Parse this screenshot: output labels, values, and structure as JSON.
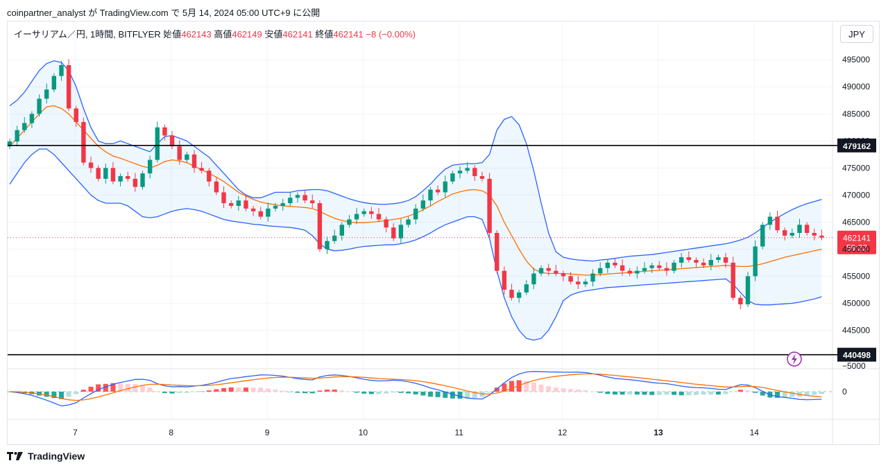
{
  "header": {
    "text": "coinpartner_analyst が TradingView.com で 5月 14, 2024 05:00 UTC+9 に公開"
  },
  "legend": {
    "symbol": "イーサリアム／円, 1時間, BITFLYER",
    "open_label": "始値",
    "open": "462143",
    "high_label": "高値",
    "high": "462149",
    "low_label": "安値",
    "low": "462141",
    "close_label": "終値",
    "close": "462141",
    "change": "−8 (−0.00%)"
  },
  "currency_button": "JPY",
  "brand": {
    "name": "TradingView"
  },
  "colors": {
    "up": "#089981",
    "down": "#f23645",
    "band": "#2962ff",
    "basis": "#ff6d00",
    "macd": "#2962ff",
    "signal": "#ff6d00"
  },
  "chart_data": [
    {
      "type": "candlestick",
      "ylim": [
        441000,
        498000
      ],
      "y_ticks": [
        445000,
        450000,
        455000,
        460000,
        465000,
        470000,
        475000,
        480000,
        485000,
        490000,
        495000
      ],
      "x_ticks": [
        "7",
        "8",
        "9",
        "10",
        "11",
        "12",
        "13",
        "14"
      ],
      "last_price_label": "462141",
      "countdown_label": "59:22",
      "horizontal_lines": [
        {
          "value": 479162,
          "label": "479162"
        },
        {
          "value": 440498,
          "label": "440498"
        }
      ],
      "closes": [
        479900,
        482000,
        483300,
        485000,
        487800,
        489500,
        492000,
        494000,
        486000,
        483500,
        476000,
        475000,
        473000,
        475000,
        472500,
        473500,
        473000,
        471500,
        474000,
        476500,
        482500,
        481000,
        479000,
        476500,
        477500,
        475000,
        474500,
        472500,
        470500,
        468500,
        468000,
        469000,
        467500,
        467000,
        466000,
        467500,
        468000,
        468500,
        469500,
        470000,
        469000,
        468500,
        460000,
        461500,
        462500,
        464500,
        465500,
        466500,
        467000,
        466500,
        465500,
        464000,
        462000,
        464500,
        465500,
        467500,
        469000,
        471000,
        470500,
        472500,
        474000,
        474500,
        475000,
        473500,
        473000,
        463000,
        456000,
        452500,
        451000,
        452000,
        453500,
        455500,
        456500,
        456000,
        455500,
        455000,
        454000,
        453500,
        454000,
        455500,
        456500,
        457500,
        457000,
        456000,
        455500,
        456000,
        456500,
        457000,
        456500,
        456000,
        457500,
        458500,
        458000,
        457500,
        457000,
        458000,
        458500,
        457500,
        451000,
        449800,
        455000,
        460500,
        464500,
        466000,
        463500,
        462500,
        463000,
        464500,
        463000,
        462500,
        462141
      ],
      "bb_upper": [
        486500,
        487500,
        489000,
        491000,
        493000,
        494300,
        494800,
        494500,
        493000,
        490000,
        486000,
        482500,
        480000,
        479500,
        479500,
        480000,
        479500,
        479000,
        478500,
        478000,
        479500,
        480800,
        481000,
        480500,
        480000,
        479000,
        478000,
        477000,
        475500,
        474000,
        472500,
        471000,
        470000,
        469500,
        469500,
        470000,
        470500,
        470500,
        470500,
        470800,
        470900,
        471000,
        471000,
        470800,
        470300,
        469800,
        469300,
        468900,
        468600,
        468400,
        468300,
        468300,
        468400,
        468600,
        469000,
        469700,
        470800,
        472000,
        473500,
        474800,
        475500,
        475700,
        475800,
        475800,
        476000,
        477500,
        482000,
        484000,
        484500,
        483000,
        479500,
        474500,
        468500,
        463000,
        459500,
        458500,
        458200,
        458000,
        457900,
        457800,
        458000,
        458100,
        458300,
        458500,
        458700,
        458800,
        458900,
        459000,
        459200,
        459400,
        459600,
        459800,
        460000,
        460200,
        460400,
        460600,
        460800,
        461000,
        461300,
        461700,
        462200,
        463000,
        464000,
        465000,
        465800,
        466600,
        467300,
        467900,
        468400,
        468800,
        469200
      ],
      "bb_lower": [
        472000,
        474000,
        476000,
        477500,
        478500,
        478500,
        477500,
        476000,
        474500,
        473000,
        471500,
        470000,
        469000,
        468500,
        468500,
        468500,
        468000,
        467000,
        466000,
        465800,
        466000,
        466500,
        467000,
        467300,
        467500,
        467300,
        467000,
        466500,
        466000,
        465500,
        465200,
        465000,
        464800,
        464600,
        464500,
        464300,
        464200,
        464100,
        464000,
        463800,
        463500,
        462500,
        461000,
        460000,
        459700,
        459800,
        460000,
        460300,
        460500,
        460600,
        460700,
        460800,
        460800,
        461000,
        461300,
        461700,
        462300,
        463000,
        463800,
        464500,
        465000,
        465500,
        466000,
        466000,
        465500,
        462000,
        456000,
        451000,
        447500,
        445000,
        443500,
        443200,
        443500,
        445000,
        447500,
        450500,
        451500,
        452000,
        452300,
        452500,
        452700,
        452900,
        453000,
        453100,
        453200,
        453300,
        453400,
        453500,
        453600,
        453700,
        453800,
        453900,
        454000,
        454100,
        454200,
        454300,
        454400,
        454500,
        453500,
        452000,
        450500,
        449800,
        449700,
        449700,
        449800,
        449900,
        450000,
        450200,
        450500,
        450800,
        451200
      ],
      "bb_basis": [
        479000,
        480500,
        482000,
        483500,
        485000,
        486300,
        486500,
        486000,
        485000,
        483500,
        482000,
        480500,
        479000,
        478000,
        477200,
        476800,
        476300,
        475800,
        475300,
        475000,
        475500,
        476200,
        476500,
        476300,
        476000,
        475300,
        474700,
        474000,
        473300,
        472500,
        471500,
        470500,
        469800,
        469200,
        468700,
        468400,
        468200,
        468000,
        467900,
        467800,
        467700,
        467500,
        467000,
        466300,
        465700,
        465300,
        465000,
        464900,
        464900,
        465000,
        465100,
        465300,
        465500,
        465700,
        466100,
        466600,
        467300,
        468000,
        468800,
        469500,
        470200,
        470600,
        470900,
        471000,
        470800,
        470000,
        468000,
        465000,
        462500,
        460000,
        457800,
        456300,
        455700,
        455500,
        455500,
        455500,
        455400,
        455300,
        455200,
        455200,
        455300,
        455400,
        455500,
        455600,
        455700,
        455800,
        455900,
        456000,
        456100,
        456200,
        456300,
        456400,
        456500,
        456600,
        456700,
        456800,
        456900,
        457000,
        456900,
        456800,
        456800,
        457000,
        457300,
        457700,
        458100,
        458500,
        458800,
        459100,
        459400,
        459700,
        460000
      ]
    },
    {
      "type": "macd",
      "ylim": [
        -6500,
        3000
      ],
      "y_ticks": [
        0,
        -5000
      ],
      "y_tick_labels": [
        "0",
        "−5000"
      ]
    }
  ]
}
